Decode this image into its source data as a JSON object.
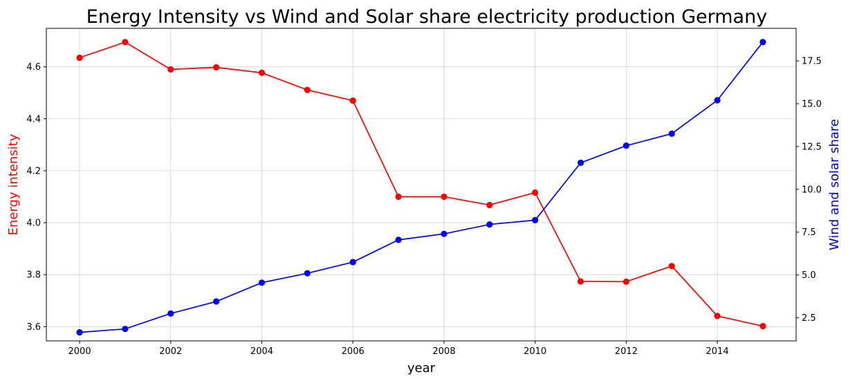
{
  "chart_data": {
    "type": "line",
    "title": "Energy Intensity vs Wind and Solar share electricity production Germany",
    "xlabel": "year",
    "ylabel_left": "Energy intensity",
    "ylabel_right": "Wind and solar share",
    "x": [
      2000,
      2001,
      2002,
      2003,
      2004,
      2005,
      2006,
      2007,
      2008,
      2009,
      2010,
      2011,
      2012,
      2013,
      2014,
      2015
    ],
    "xlim": [
      1999.27,
      2015.73
    ],
    "x_ticks": [
      2000,
      2002,
      2004,
      2006,
      2008,
      2010,
      2012,
      2014
    ],
    "ylim_left": [
      3.545,
      4.748
    ],
    "y_ticks_left": [
      3.6,
      3.8,
      4.0,
      4.2,
      4.4,
      4.6
    ],
    "ylim_right": [
      1.15,
      19.4
    ],
    "y_ticks_right": [
      2.5,
      5.0,
      7.5,
      10.0,
      12.5,
      15.0,
      17.5
    ],
    "grid": true,
    "series": [
      {
        "axis": "left",
        "color": "#ff0000",
        "values": [
          4.635,
          4.695,
          4.59,
          4.598,
          4.577,
          4.511,
          4.47,
          4.1,
          4.1,
          4.068,
          4.116,
          3.774,
          3.773,
          3.833,
          3.641,
          3.602
        ]
      },
      {
        "axis": "right",
        "color": "#0000ff",
        "values": [
          1.65,
          1.85,
          2.75,
          3.45,
          4.55,
          5.1,
          5.75,
          7.05,
          7.4,
          7.95,
          8.2,
          11.55,
          12.55,
          13.25,
          15.2,
          18.6
        ]
      }
    ],
    "colors": {
      "left_axis_label": "#ff0000",
      "right_axis_label": "#0000cc",
      "grid": "#d3d3d3"
    }
  }
}
